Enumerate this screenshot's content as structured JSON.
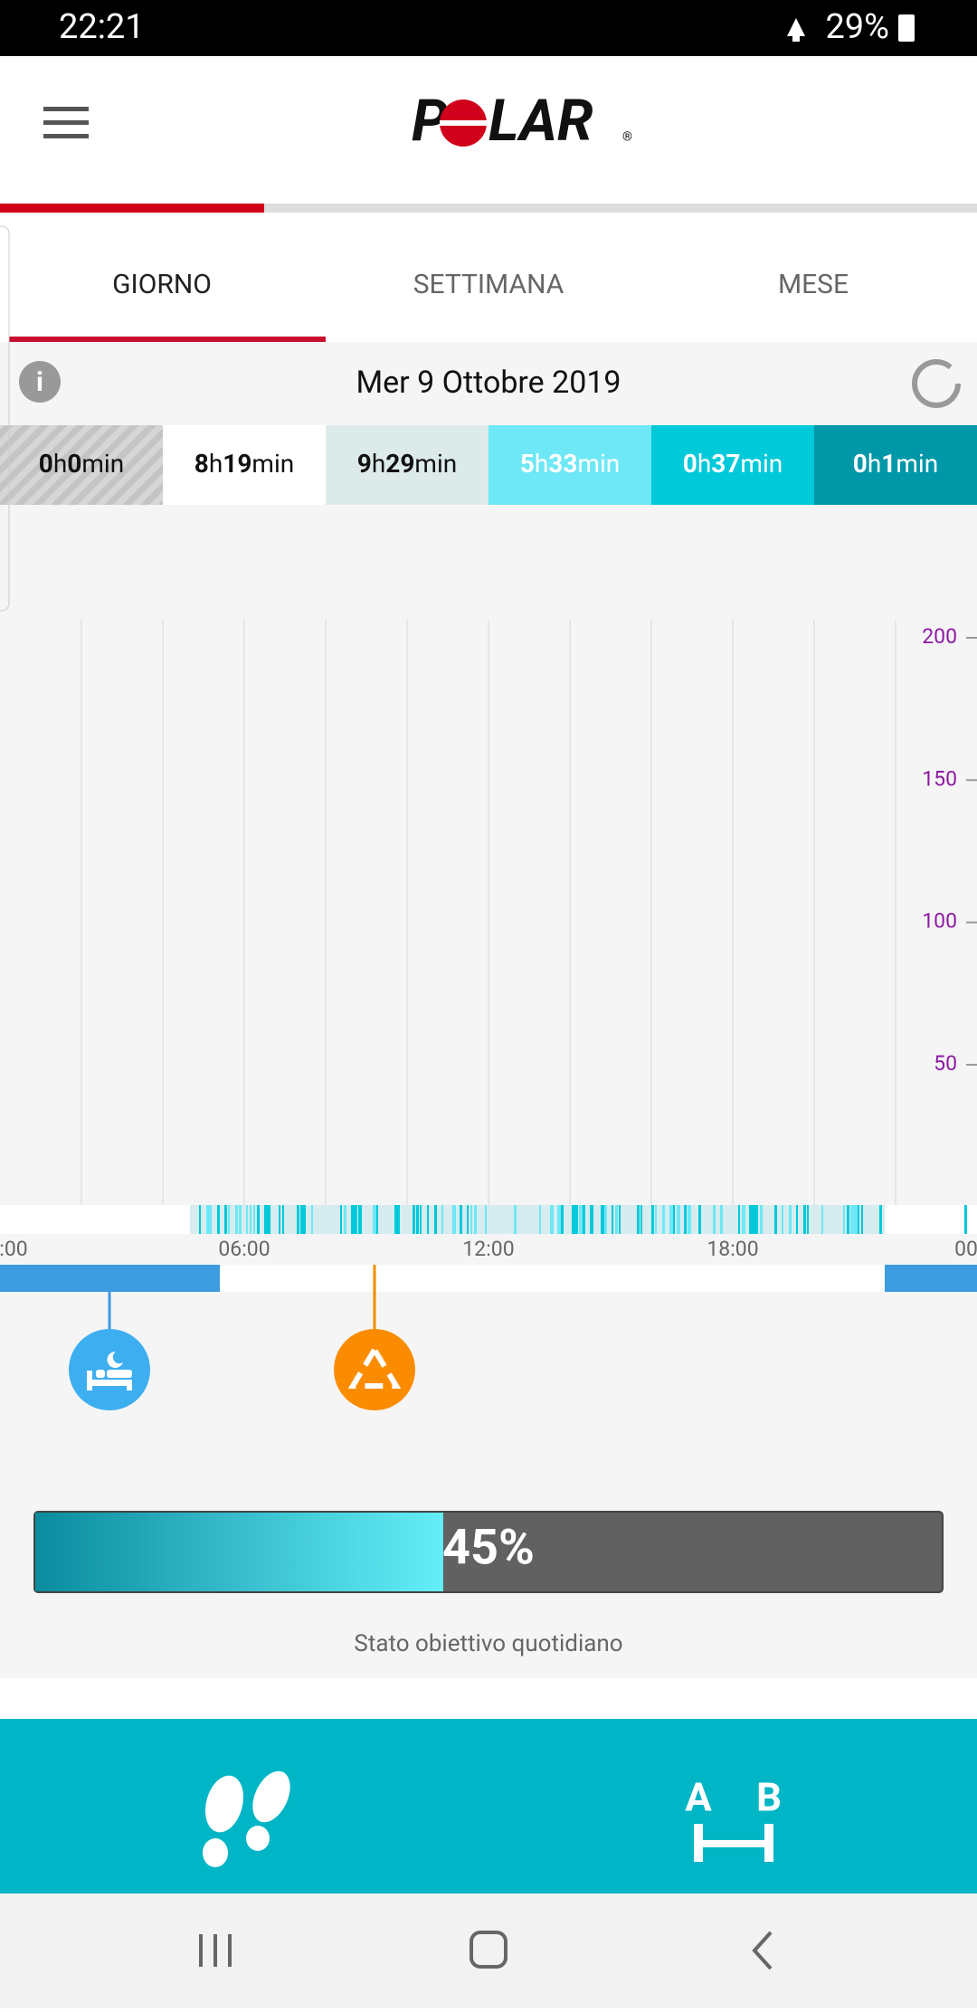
{
  "status_bar": {
    "time": "22:21",
    "battery": "29%"
  },
  "tabs": [
    "GIORNO",
    "SETTIMANA",
    "MESE"
  ],
  "date": "Mer 9 Ottobre 2019",
  "durations": [
    [
      "0",
      "h",
      "0",
      "min"
    ],
    [
      "8",
      "h",
      "19",
      "min"
    ],
    [
      "9",
      "h",
      "29",
      "min"
    ],
    [
      "5",
      "h",
      "33",
      "min"
    ],
    [
      "0",
      "h",
      "37",
      "min"
    ],
    [
      "0",
      "h",
      "1",
      "min"
    ]
  ],
  "heart_rate_axis": [
    "200",
    "150",
    "100",
    "50"
  ],
  "time_axis": [
    ":00",
    "06:00",
    "12:00",
    "18:00",
    "00"
  ],
  "goal": {
    "value": 45,
    "label": "45%",
    "caption": "Stato obiettivo quotidiano"
  }
}
